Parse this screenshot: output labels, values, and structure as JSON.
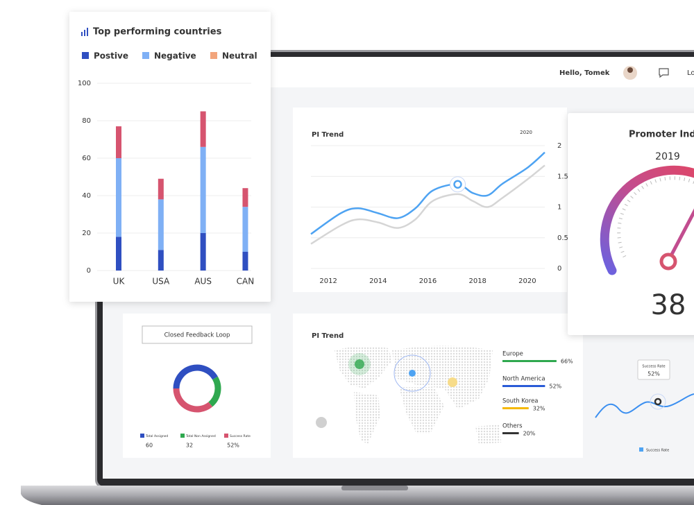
{
  "header": {
    "greeting": "Hello, Tomek",
    "menu_item": "Lo"
  },
  "chart_data": [
    {
      "type": "stacked_bar",
      "title": "Top performing countries",
      "categories": [
        "UK",
        "USA",
        "AUS",
        "CAN"
      ],
      "series": [
        {
          "name": "Postive",
          "color": "#2f4fc1",
          "legend_color": "#2f4fc1",
          "values": [
            18,
            11,
            20,
            10
          ]
        },
        {
          "name": "Negative",
          "color": "#7fb0f5",
          "legend_color": "#7fb0f5",
          "values": [
            42,
            27,
            46,
            24
          ]
        },
        {
          "name": "Neutral",
          "color": "#d6546f",
          "legend_color": "#f2a57c",
          "values": [
            17,
            11,
            19,
            10
          ]
        }
      ],
      "ylim": [
        0,
        100
      ],
      "yticks": [
        0,
        20,
        40,
        60,
        80,
        100
      ],
      "grid": true
    },
    {
      "type": "line",
      "title": "PI Trend",
      "subtitle": "2020",
      "x": [
        2011.3,
        2012.5,
        2013.2,
        2014,
        2014.8,
        2015.5,
        2016.2,
        2017.2,
        2017.8,
        2018.4,
        2019,
        2020,
        2020.7
      ],
      "series": [
        {
          "color": "#4ea3f2",
          "values": [
            0.56,
            0.9,
            0.98,
            0.9,
            0.82,
            0.98,
            1.27,
            1.37,
            1.23,
            1.19,
            1.38,
            1.64,
            1.89
          ]
        },
        {
          "color": "#d5d5d5",
          "values": [
            0.4,
            0.7,
            0.8,
            0.75,
            0.66,
            0.8,
            1.1,
            1.21,
            1.1,
            1.0,
            1.15,
            1.45,
            1.68
          ]
        }
      ],
      "highlight_index": 7,
      "xlim": [
        2011.3,
        2020.7
      ],
      "xticks": [
        2012,
        2014,
        2016,
        2018,
        2020
      ],
      "ylim": [
        0,
        2
      ],
      "yticks": [
        0,
        0.5,
        1,
        1.5,
        2
      ],
      "y_axis_side": "right",
      "grid": true
    },
    {
      "type": "donut",
      "button": "Closed Feedback Loop",
      "categories": [
        "Total Assigned",
        "Total Non Assigned",
        "Success Rate"
      ],
      "values": [
        60,
        32,
        52
      ],
      "value_labels": [
        "60",
        "32",
        "52%"
      ],
      "colors": [
        "#2f4fc1",
        "#2fa84f",
        "#d6546f"
      ]
    },
    {
      "type": "hbar",
      "title": "PI Trend",
      "categories": [
        "Europe",
        "North America",
        "South Korea",
        "Others"
      ],
      "values": [
        66,
        52,
        32,
        20
      ],
      "value_labels": [
        "66%",
        "52%",
        "32%",
        "20%"
      ],
      "colors": [
        "#2fa84f",
        "#2a5bd7",
        "#f5b800",
        "#333333"
      ]
    },
    {
      "type": "gauge",
      "title": "Promoter Inde",
      "subtitle": "2019",
      "value": 38
    },
    {
      "type": "sparkline",
      "tooltip_title": "Success Rate",
      "tooltip_value": "52%",
      "legend": "Success Rate",
      "color": "#3b8ff0"
    }
  ]
}
